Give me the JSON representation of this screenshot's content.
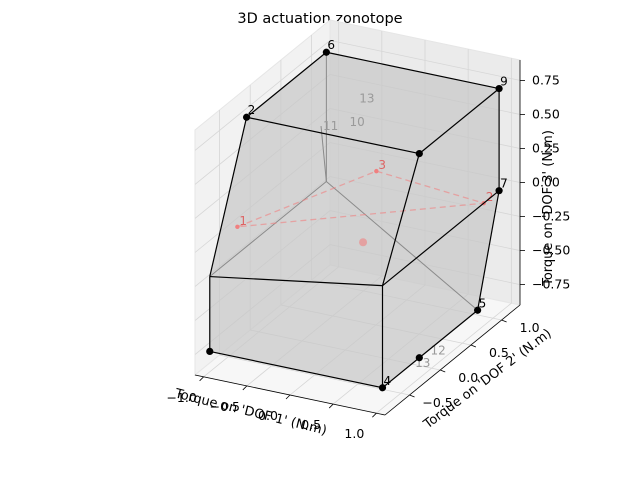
{
  "chart_data": {
    "type": "3d-polyhedron",
    "title": "3D actuation zonotope",
    "xlabel": "Torque on 'DOF 1' (N.m)",
    "ylabel": "Torque on 'DOF 2' (N.m)",
    "zlabel": "Torque on 'DOF 3' (N.m)",
    "xlim": [
      -1.1,
      1.1
    ],
    "ylim": [
      -0.9,
      1.3
    ],
    "zlim": [
      -0.9,
      0.9
    ],
    "x_ticks": [
      -1.0,
      -0.5,
      0.0,
      0.5,
      1.0
    ],
    "x_tick_labels": [
      "−1.0",
      "−0.5",
      "0.0",
      "0.5",
      "1.0"
    ],
    "y_ticks": [
      -0.5,
      0.0,
      0.5,
      1.0
    ],
    "y_tick_labels": [
      "−0.5",
      "0.0",
      "0.5",
      "1.0"
    ],
    "z_ticks": [
      -0.75,
      -0.5,
      -0.25,
      0.0,
      0.25,
      0.5,
      0.75
    ],
    "z_tick_labels": [
      "−0.75",
      "−0.50",
      "−0.25",
      "0.00",
      "0.25",
      "0.50",
      "0.75"
    ],
    "grid": true,
    "vertices": [
      {
        "label": "",
        "x": -1.0,
        "y": -0.8,
        "z": -0.75,
        "visible": true
      },
      {
        "label": "",
        "x": -1.0,
        "y": -0.8,
        "z": -0.2,
        "visible": true
      },
      {
        "label": "2",
        "x": -1.0,
        "y": -0.2,
        "z": 0.75,
        "visible": true
      },
      {
        "label": "4",
        "x": 1.0,
        "y": -0.8,
        "z": -0.75,
        "visible": true
      },
      {
        "label": "5",
        "x": 1.0,
        "y": 0.75,
        "z": -0.75,
        "visible": true
      },
      {
        "label": "6",
        "x": -1.0,
        "y": 1.1,
        "z": 0.75,
        "visible": true
      },
      {
        "label": "7",
        "x": 1.0,
        "y": 1.1,
        "z": 0.0,
        "visible": true
      },
      {
        "label": "9",
        "x": 1.0,
        "y": 1.1,
        "z": 0.75,
        "visible": true
      },
      {
        "label": "",
        "x": 1.0,
        "y": -0.8,
        "z": 0.0,
        "visible": true
      },
      {
        "label": "",
        "x": 1.0,
        "y": -0.2,
        "z": 0.75,
        "visible": true
      },
      {
        "label": "",
        "x": 1.0,
        "y": -0.2,
        "z": -0.75,
        "visible": true
      },
      {
        "label": "",
        "x": -1.0,
        "y": 1.1,
        "z": -0.2,
        "visible": false
      },
      {
        "label": "10",
        "x": -0.4,
        "y": 0.6,
        "z": 0.5,
        "visible": false
      },
      {
        "label": "11",
        "x": -0.6,
        "y": 0.45,
        "z": 0.5,
        "visible": false
      },
      {
        "label": "13",
        "x": -0.5,
        "y": 0.9,
        "z": 0.55,
        "visible": false
      },
      {
        "label": "13",
        "x": 1.0,
        "y": -0.3,
        "z": -0.75,
        "visible": false
      },
      {
        "label": "12",
        "x": 1.0,
        "y": -0.05,
        "z": -0.75,
        "visible": false
      }
    ],
    "visible_edges": [
      [
        0,
        1
      ],
      [
        1,
        2
      ],
      [
        0,
        3
      ],
      [
        3,
        8
      ],
      [
        3,
        10
      ],
      [
        10,
        4
      ],
      [
        4,
        6
      ],
      [
        6,
        7
      ],
      [
        2,
        5
      ],
      [
        5,
        7
      ],
      [
        2,
        9
      ],
      [
        9,
        7
      ],
      [
        1,
        8
      ],
      [
        8,
        9
      ],
      [
        8,
        6
      ]
    ],
    "hidden_edges": [
      [
        5,
        11
      ],
      [
        11,
        1
      ],
      [
        11,
        4
      ],
      [
        11,
        13
      ]
    ],
    "faces": [
      [
        0,
        3,
        8,
        1
      ],
      [
        1,
        8,
        9,
        2
      ],
      [
        2,
        9,
        7,
        5
      ],
      [
        8,
        6,
        7,
        9
      ],
      [
        3,
        10,
        4,
        6,
        8
      ]
    ],
    "red_points": [
      {
        "label": "1",
        "x": -1.0,
        "y": -0.35,
        "z": 0.0
      },
      {
        "label": "2",
        "x": 1.0,
        "y": 0.85,
        "z": 0.0
      },
      {
        "label": "3",
        "x": -0.35,
        "y": 1.0,
        "z": 0.0
      },
      {
        "label": "",
        "x": 0.1,
        "y": 0.15,
        "z": -0.15
      }
    ],
    "red_polygon": [
      0,
      2,
      1
    ]
  }
}
